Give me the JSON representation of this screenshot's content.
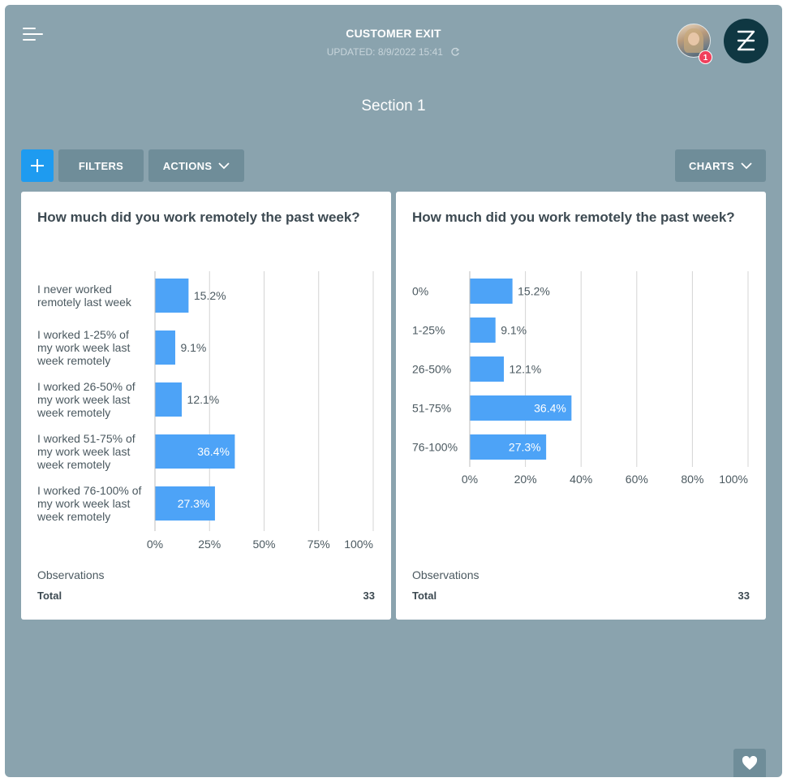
{
  "header": {
    "title": "CUSTOMER EXIT",
    "updated": "UPDATED: 8/9/2022 15:41",
    "notification_count": "1"
  },
  "section": {
    "title": "Section 1"
  },
  "toolbar": {
    "add_label": "+",
    "filters_label": "FILTERS",
    "actions_label": "ACTIONS",
    "charts_label": "CHARTS"
  },
  "colors": {
    "bar": "#4da3f7",
    "background": "#8aa3ae",
    "button": "#6f8d99",
    "add_button": "#1e9bf0"
  },
  "icons": [
    "menu-icon",
    "refresh-icon",
    "avatar",
    "logo-icon",
    "chevron-down-icon",
    "heart-icon"
  ],
  "cards": [
    {
      "title": "How much did you work remotely the past week?",
      "observations_label": "Observations",
      "total_label": "Total",
      "total_value": "33",
      "chart_data": {
        "type": "bar",
        "orientation": "horizontal",
        "categories": [
          [
            "I never worked",
            "remotely last week"
          ],
          [
            "I worked 1-25% of",
            "my work week last",
            "week remotely"
          ],
          [
            "I worked 26-50% of",
            "my work week last",
            "week remotely"
          ],
          [
            "I worked 51-75% of",
            "my work week last",
            "week remotely"
          ],
          [
            "I worked 76-100% of",
            "my work week last",
            "week remotely"
          ]
        ],
        "values": [
          15.2,
          9.1,
          12.1,
          36.4,
          27.3
        ],
        "labels": [
          "15.2%",
          "9.1%",
          "12.1%",
          "36.4%",
          "27.3%"
        ],
        "xlim": [
          0,
          100
        ],
        "ticks": [
          0,
          25,
          50,
          75,
          100
        ],
        "tick_labels": [
          "0%",
          "25%",
          "50%",
          "75%",
          "100%"
        ],
        "grid": true
      }
    },
    {
      "title": "How much did you work remotely the past week?",
      "observations_label": "Observations",
      "total_label": "Total",
      "total_value": "33",
      "chart_data": {
        "type": "bar",
        "orientation": "horizontal",
        "categories": [
          [
            "0%"
          ],
          [
            "1-25%"
          ],
          [
            "26-50%"
          ],
          [
            "51-75%"
          ],
          [
            "76-100%"
          ]
        ],
        "values": [
          15.2,
          9.1,
          12.1,
          36.4,
          27.3
        ],
        "labels": [
          "15.2%",
          "9.1%",
          "12.1%",
          "36.4%",
          "27.3%"
        ],
        "xlim": [
          0,
          100
        ],
        "ticks": [
          0,
          20,
          40,
          60,
          80,
          100
        ],
        "tick_labels": [
          "0%",
          "20%",
          "40%",
          "60%",
          "80%",
          "100%"
        ],
        "grid": true
      }
    }
  ]
}
